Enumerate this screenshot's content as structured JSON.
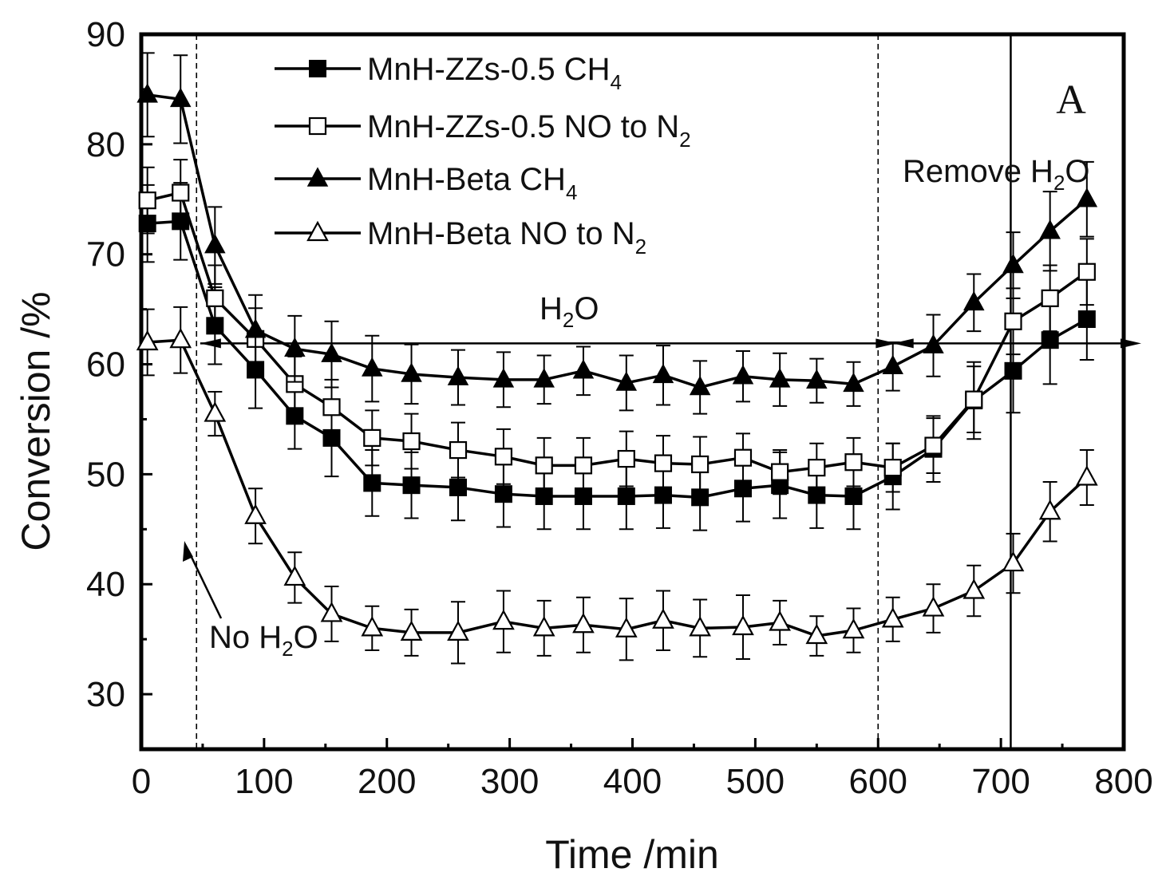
{
  "chart_data": {
    "type": "line",
    "xlabel": "Time /min",
    "ylabel": "Conversion /%",
    "xlim": [
      0,
      800
    ],
    "ylim": [
      25,
      90
    ],
    "xticks": [
      0,
      100,
      200,
      300,
      400,
      500,
      600,
      700,
      800
    ],
    "yticks": [
      30,
      40,
      50,
      60,
      70,
      80,
      90
    ],
    "xtick_labels": [
      "0",
      "100",
      "200",
      "300",
      "400",
      "500",
      "600",
      "700",
      "800"
    ],
    "ytick_labels": [
      "30",
      "40",
      "50",
      "60",
      "70",
      "80",
      "90"
    ],
    "panel_label": "A",
    "legend_position": "top-left",
    "series": [
      {
        "name": "MnH-ZZs-0.5 CH4",
        "legend_main": "MnH-ZZs-0.5  CH",
        "legend_sub": "4",
        "marker": "square-filled",
        "x": [
          5,
          32,
          60,
          93,
          125,
          155,
          188,
          220,
          258,
          295,
          328,
          360,
          395,
          425,
          455,
          490,
          520,
          550,
          580,
          612,
          645,
          678,
          710,
          740,
          770
        ],
        "y": [
          72.8,
          73.0,
          63.5,
          59.5,
          55.3,
          53.3,
          49.2,
          49.0,
          48.8,
          48.2,
          48.0,
          48.0,
          48.0,
          48.1,
          47.9,
          48.7,
          49.0,
          48.1,
          48.0,
          49.8,
          52.3,
          56.7,
          59.4,
          62.2,
          64.1
        ],
        "err": [
          3.5,
          3.5,
          3.5,
          3.5,
          3.0,
          3.5,
          3.0,
          3.0,
          3.0,
          3.0,
          3.0,
          3.0,
          3.0,
          3.0,
          3.0,
          3.0,
          3.0,
          3.0,
          3.0,
          3.0,
          3.0,
          3.5,
          3.8,
          4.0,
          3.7
        ]
      },
      {
        "name": "MnH-ZZs-0.5 NO to N2",
        "legend_main": "MnH-ZZs-0.5 NO to N",
        "legend_sub": "2",
        "marker": "square-open",
        "x": [
          5,
          32,
          60,
          93,
          125,
          155,
          188,
          220,
          258,
          295,
          328,
          360,
          395,
          425,
          455,
          490,
          520,
          550,
          580,
          612,
          645,
          678,
          710,
          740,
          770
        ],
        "y": [
          74.9,
          75.6,
          66.0,
          62.3,
          58.2,
          56.1,
          53.3,
          53.0,
          52.2,
          51.6,
          50.8,
          50.8,
          51.4,
          51.0,
          50.9,
          51.5,
          50.2,
          50.6,
          51.1,
          50.6,
          52.6,
          56.8,
          63.9,
          66.0,
          68.4
        ],
        "err": [
          3.0,
          3.0,
          3.0,
          2.8,
          2.5,
          2.5,
          2.5,
          2.5,
          2.5,
          2.5,
          2.5,
          2.5,
          2.5,
          2.5,
          2.5,
          2.2,
          2.0,
          2.2,
          2.2,
          2.2,
          2.5,
          3.0,
          3.0,
          3.0,
          3.0
        ]
      },
      {
        "name": "MnH-Beta CH4",
        "legend_main": "MnH-Beta     CH",
        "legend_sub": "4",
        "marker": "triangle-filled",
        "x": [
          5,
          32,
          60,
          93,
          125,
          155,
          188,
          220,
          258,
          295,
          328,
          360,
          395,
          425,
          455,
          490,
          520,
          550,
          580,
          612,
          645,
          678,
          710,
          740,
          770
        ],
        "y": [
          84.5,
          84.1,
          70.8,
          63.1,
          61.4,
          60.9,
          59.6,
          59.1,
          58.8,
          58.6,
          58.6,
          59.4,
          58.3,
          59.0,
          57.9,
          58.9,
          58.6,
          58.5,
          58.2,
          59.8,
          61.7,
          65.6,
          69.0,
          72.1,
          75.0
        ],
        "err": [
          3.8,
          4.0,
          3.5,
          3.2,
          3.0,
          3.0,
          3.0,
          2.7,
          2.5,
          2.5,
          2.2,
          2.2,
          2.5,
          2.7,
          2.4,
          2.3,
          2.4,
          2.0,
          2.0,
          2.2,
          2.8,
          2.6,
          3.0,
          3.6,
          3.4
        ]
      },
      {
        "name": "MnH-Beta NO to N2",
        "legend_main": "MnH-Beta     NO to N",
        "legend_sub": "2",
        "marker": "triangle-open",
        "x": [
          5,
          32,
          60,
          93,
          125,
          155,
          188,
          220,
          258,
          295,
          328,
          360,
          395,
          425,
          455,
          490,
          520,
          550,
          580,
          612,
          645,
          678,
          710,
          740,
          770
        ],
        "y": [
          62.0,
          62.2,
          55.5,
          46.2,
          40.6,
          37.3,
          36.0,
          35.6,
          35.6,
          36.6,
          36.0,
          36.3,
          35.9,
          36.7,
          36.0,
          36.1,
          36.5,
          35.3,
          35.8,
          36.8,
          37.8,
          39.4,
          41.9,
          46.6,
          49.7
        ],
        "err": [
          3.0,
          3.0,
          2.0,
          2.5,
          2.3,
          2.5,
          2.0,
          2.1,
          2.8,
          2.8,
          2.5,
          2.5,
          2.8,
          2.7,
          2.6,
          2.9,
          2.0,
          1.8,
          2.0,
          2.0,
          2.2,
          2.3,
          2.7,
          2.7,
          2.5
        ]
      }
    ],
    "annotations": {
      "h2o_main": "H",
      "h2o_sub": "2",
      "h2o_tail": "O",
      "no_h2o_main": "No H",
      "no_h2o_sub": "2",
      "no_h2o_tail": "O",
      "remove_main": "Remove H",
      "remove_sub": "2",
      "remove_tail": "O",
      "h2o_level": 61.9,
      "dashed_times": [
        45,
        600
      ],
      "remove_time": 708
    }
  }
}
